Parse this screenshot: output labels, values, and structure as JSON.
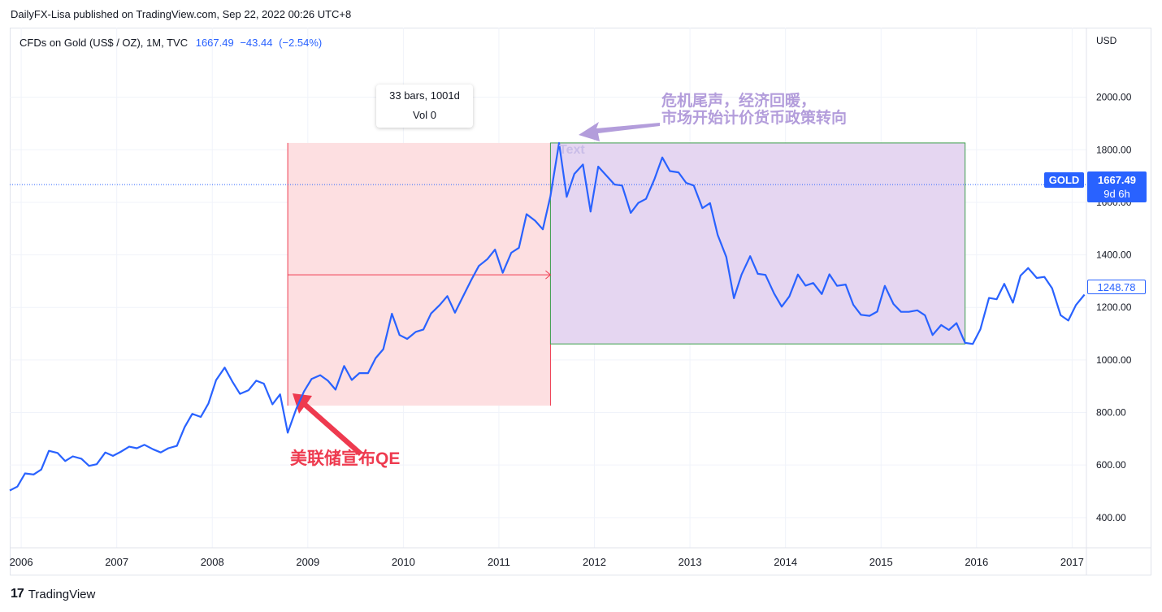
{
  "header": {
    "published": "DailyFX-Lisa published on TradingView.com, Sep 22, 2022 00:26 UTC+8"
  },
  "legend": {
    "symbol": "CFDs on Gold (US$ / OZ), 1M, TVC",
    "last": "1667.49",
    "change": "−43.44",
    "change_pct": "(−2.54%)"
  },
  "currency": "USD",
  "tooltip": {
    "line1": "33 bars, 1001d",
    "line2": "Vol 0"
  },
  "annotations": {
    "qe": "美联储宣布QE",
    "recovery_line1": "危机尾声，经济回暖，",
    "recovery_line2": "市场开始计价货币政策转向",
    "text_label": "Text"
  },
  "price_tags": {
    "symbol": "GOLD",
    "current_price": "1667.49",
    "countdown": "9d 6h",
    "last_visible": "1248.78"
  },
  "footer": {
    "brand": "TradingView",
    "logo": "17"
  },
  "colors": {
    "line": "#2962ff",
    "qe_box": "#fddfe1",
    "qe_edge": "#ee3a4f",
    "recovery_box": "#e5d6f1",
    "recovery_edge": "#3e9e4e",
    "qe_arrow": "#ee3a4f",
    "recovery_arrow": "#b39ddb"
  },
  "chart_data": {
    "type": "line",
    "title": "CFDs on Gold (US$ / OZ), 1M, TVC",
    "ylabel": "USD",
    "y_ticks": [
      "400.00",
      "600.00",
      "800.00",
      "1000.00",
      "1200.00",
      "1400.00",
      "1600.00",
      "1800.00",
      "2000.00"
    ],
    "x_ticks": [
      "2006",
      "2007",
      "2008",
      "2009",
      "2010",
      "2011",
      "2012",
      "2013",
      "2014",
      "2015",
      "2016",
      "2017"
    ],
    "xlim": [
      2005.88,
      2017.15
    ],
    "ylim": [
      285,
      2265
    ],
    "grid": true,
    "series": [
      {
        "x": [
          2005.88,
          2005.96,
          2006.04,
          2006.13,
          2006.21,
          2006.29,
          2006.38,
          2006.46,
          2006.54,
          2006.63,
          2006.71,
          2006.79,
          2006.88,
          2006.96,
          2007.04,
          2007.13,
          2007.21,
          2007.29,
          2007.38,
          2007.46,
          2007.54,
          2007.63,
          2007.71,
          2007.79,
          2007.88,
          2007.96,
          2008.04,
          2008.13,
          2008.21,
          2008.29,
          2008.38,
          2008.46,
          2008.54,
          2008.63,
          2008.71,
          2008.79,
          2008.88,
          2008.96,
          2009.04,
          2009.13,
          2009.21,
          2009.29,
          2009.38,
          2009.46,
          2009.54,
          2009.63,
          2009.71,
          2009.79,
          2009.88,
          2009.96,
          2010.04,
          2010.13,
          2010.21,
          2010.29,
          2010.38,
          2010.46,
          2010.54,
          2010.63,
          2010.71,
          2010.79,
          2010.88,
          2010.96,
          2011.04,
          2011.13,
          2011.21,
          2011.29,
          2011.38,
          2011.46,
          2011.54,
          2011.63,
          2011.71,
          2011.79,
          2011.88,
          2011.96,
          2012.04,
          2012.13,
          2012.21,
          2012.29,
          2012.38,
          2012.46,
          2012.54,
          2012.63,
          2012.71,
          2012.79,
          2012.88,
          2012.96,
          2013.04,
          2013.13,
          2013.21,
          2013.29,
          2013.38,
          2013.46,
          2013.54,
          2013.63,
          2013.71,
          2013.79,
          2013.88,
          2013.96,
          2014.04,
          2014.13,
          2014.21,
          2014.29,
          2014.38,
          2014.46,
          2014.54,
          2014.63,
          2014.71,
          2014.79,
          2014.88,
          2014.96,
          2015.04,
          2015.13,
          2015.21,
          2015.29,
          2015.38,
          2015.46,
          2015.54,
          2015.63,
          2015.71,
          2015.79,
          2015.88,
          2015.96,
          2016.04,
          2016.13,
          2016.21,
          2016.29,
          2016.38,
          2016.46,
          2016.54,
          2016.63,
          2016.71,
          2016.79,
          2016.88,
          2016.96,
          2017.04,
          2017.13
        ],
        "values": [
          503,
          518,
          568,
          564,
          583,
          654,
          646,
          615,
          633,
          624,
          597,
          603,
          648,
          635,
          650,
          670,
          664,
          677,
          660,
          648,
          664,
          673,
          744,
          795,
          783,
          834,
          923,
          971,
          918,
          871,
          885,
          921,
          910,
          831,
          869,
          723,
          815,
          880,
          928,
          942,
          921,
          887,
          977,
          924,
          950,
          950,
          1007,
          1041,
          1176,
          1095,
          1080,
          1107,
          1116,
          1177,
          1209,
          1243,
          1180,
          1246,
          1304,
          1358,
          1384,
          1420,
          1332,
          1408,
          1427,
          1555,
          1530,
          1497,
          1624,
          1826,
          1621,
          1708,
          1744,
          1565,
          1736,
          1700,
          1668,
          1664,
          1560,
          1598,
          1613,
          1690,
          1771,
          1719,
          1714,
          1674,
          1664,
          1578,
          1597,
          1476,
          1392,
          1235,
          1325,
          1395,
          1328,
          1324,
          1253,
          1203,
          1242,
          1325,
          1283,
          1293,
          1251,
          1326,
          1282,
          1287,
          1210,
          1172,
          1168,
          1184,
          1282,
          1213,
          1183,
          1183,
          1189,
          1170,
          1095,
          1133,
          1114,
          1140,
          1065,
          1061,
          1117,
          1236,
          1231,
          1290,
          1218,
          1321,
          1350,
          1312,
          1316,
          1273,
          1170,
          1150,
          1209,
          1248.78
        ]
      }
    ],
    "drawings": {
      "qe_range": {
        "x": [
          2008.79,
          2011.54
        ],
        "y": [
          826,
          1826
        ]
      },
      "recovery_range": {
        "x": [
          2011.54,
          2015.88
        ],
        "y": [
          1061,
          1826
        ]
      },
      "range_arrow": {
        "x": [
          2008.79,
          2011.54
        ],
        "y": 1324
      },
      "current_price_line": 1667.49
    }
  }
}
